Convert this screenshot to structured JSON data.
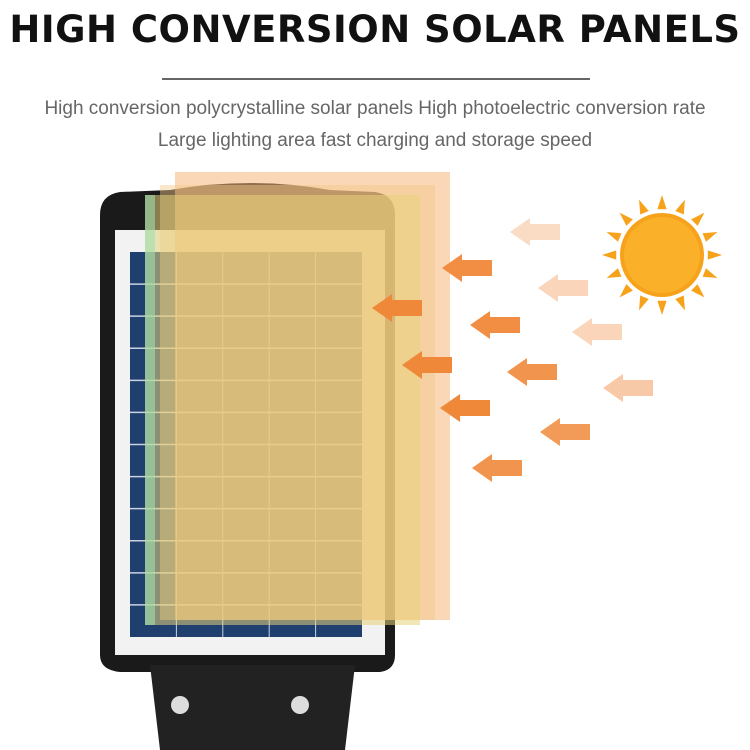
{
  "header": {
    "title": "HIGH CONVERSION SOLAR PANELS",
    "subtitle_line1": "High conversion polycrystalline solar panels High photoelectric conversion rate",
    "subtitle_line2": "Large lighting area fast charging and storage speed"
  },
  "illustration": {
    "icons": [
      "sun-icon",
      "light-arrow-icon",
      "solar-street-light"
    ],
    "colors": {
      "arrow": "#f0883a",
      "sun": "#f7a21b",
      "panel": "#1f3f6e",
      "body": "#1a1a1a",
      "overlay_orange": "#f6b77a",
      "overlay_yellow": "#e8d27a",
      "overlay_green": "#9fe0b0"
    }
  }
}
